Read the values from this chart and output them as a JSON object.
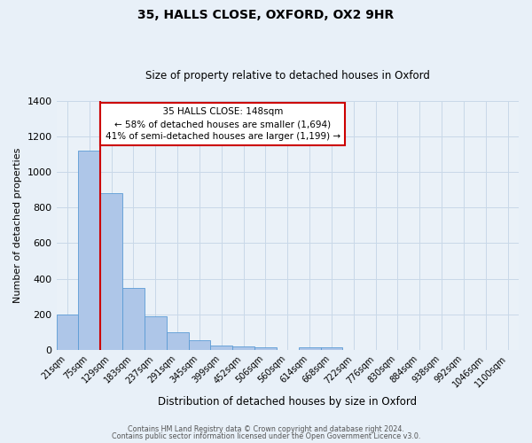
{
  "title_line1": "35, HALLS CLOSE, OXFORD, OX2 9HR",
  "title_line2": "Size of property relative to detached houses in Oxford",
  "xlabel": "Distribution of detached houses by size in Oxford",
  "ylabel": "Number of detached properties",
  "bar_labels": [
    "21sqm",
    "75sqm",
    "129sqm",
    "183sqm",
    "237sqm",
    "291sqm",
    "345sqm",
    "399sqm",
    "452sqm",
    "506sqm",
    "560sqm",
    "614sqm",
    "668sqm",
    "722sqm",
    "776sqm",
    "830sqm",
    "884sqm",
    "938sqm",
    "992sqm",
    "1046sqm",
    "1100sqm"
  ],
  "bar_values": [
    200,
    1120,
    880,
    350,
    190,
    100,
    55,
    25,
    20,
    15,
    0,
    15,
    15,
    0,
    0,
    0,
    0,
    0,
    0,
    0,
    0
  ],
  "bar_color": "#aec6e8",
  "bar_edge_color": "#5b9bd5",
  "ylim": [
    0,
    1400
  ],
  "yticks": [
    0,
    200,
    400,
    600,
    800,
    1000,
    1200,
    1400
  ],
  "vline_x": 1.5,
  "vline_color": "#cc0000",
  "annotation_title": "35 HALLS CLOSE: 148sqm",
  "annotation_line1": "← 58% of detached houses are smaller (1,694)",
  "annotation_line2": "41% of semi-detached houses are larger (1,199) →",
  "annotation_box_color": "#cc0000",
  "footer_line1": "Contains HM Land Registry data © Crown copyright and database right 2024.",
  "footer_line2": "Contains public sector information licensed under the Open Government Licence v3.0.",
  "bg_color": "#e8f0f8",
  "plot_bg_color": "#eaf1f8",
  "grid_color": "#c8d8e8"
}
